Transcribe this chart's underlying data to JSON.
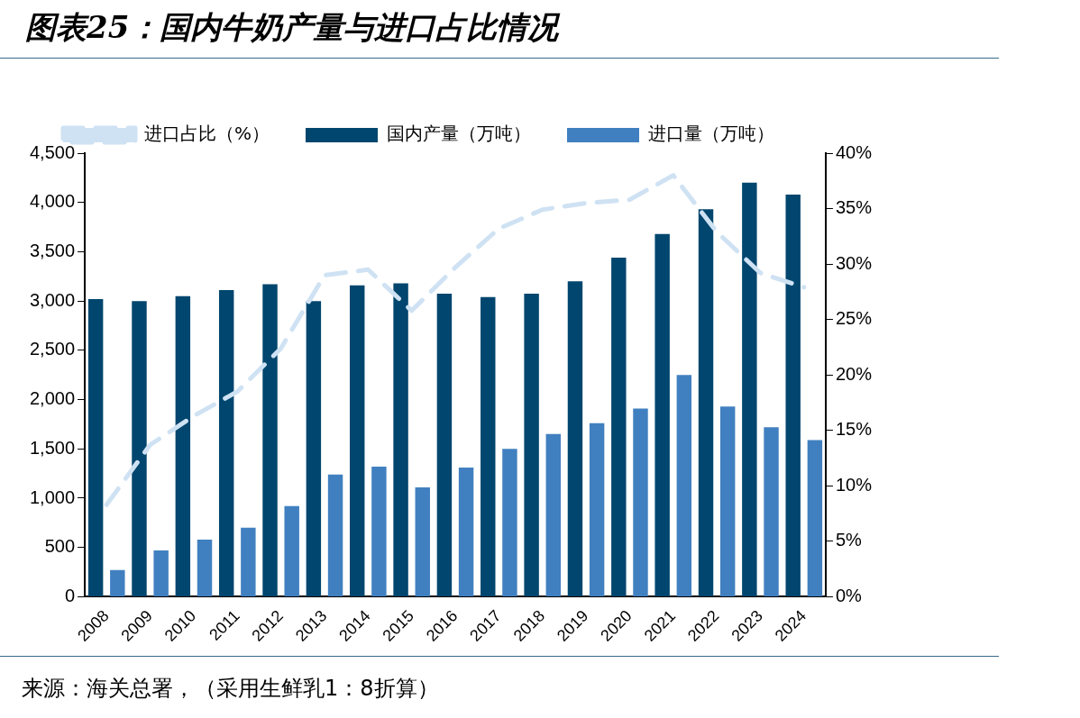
{
  "chart_data": {
    "type": "bar",
    "title": "图表25：国内牛奶产量与进口占比情况",
    "categories": [
      "2008",
      "2009",
      "2010",
      "2011",
      "2012",
      "2013",
      "2014",
      "2015",
      "2016",
      "2017",
      "2018",
      "2019",
      "2020",
      "2021",
      "2022",
      "2023",
      "2024"
    ],
    "series": [
      {
        "name": "国内产量（万吨）",
        "color": "#00466e",
        "values": [
          3020,
          3000,
          3050,
          3110,
          3170,
          3000,
          3160,
          3180,
          3075,
          3040,
          3075,
          3200,
          3440,
          3680,
          3930,
          4200,
          4080
        ]
      },
      {
        "name": "进口量（万吨）",
        "color": "#4180c0",
        "values": [
          270,
          470,
          580,
          700,
          920,
          1240,
          1320,
          1110,
          1310,
          1500,
          1650,
          1760,
          1910,
          2250,
          1930,
          1720,
          1590
        ]
      },
      {
        "name": "进口占比（%）",
        "type": "line",
        "axis": "y2",
        "line_style": "dashed",
        "color": "#cfe2f3",
        "values": [
          8.3,
          13.7,
          16.3,
          18.5,
          22.4,
          29.0,
          29.5,
          25.8,
          29.7,
          33.2,
          34.9,
          35.5,
          35.8,
          38.0,
          32.9,
          29.2,
          27.9
        ]
      }
    ],
    "ylim": [
      0,
      4500
    ],
    "yticks": [
      {
        "value": 0,
        "label": "0"
      },
      {
        "value": 500,
        "label": "500"
      },
      {
        "value": 1000,
        "label": "1,000"
      },
      {
        "value": 1500,
        "label": "1,500"
      },
      {
        "value": 2000,
        "label": "2,000"
      },
      {
        "value": 2500,
        "label": "2,500"
      },
      {
        "value": 3000,
        "label": "3,000"
      },
      {
        "value": 3500,
        "label": "3,500"
      },
      {
        "value": 4000,
        "label": "4,000"
      },
      {
        "value": 4500,
        "label": "4,500"
      }
    ],
    "y2lim": [
      0,
      40
    ],
    "y2ticks": [
      {
        "value": 0,
        "label": "0%"
      },
      {
        "value": 5,
        "label": "5%"
      },
      {
        "value": 10,
        "label": "10%"
      },
      {
        "value": 15,
        "label": "15%"
      },
      {
        "value": 20,
        "label": "20%"
      },
      {
        "value": 25,
        "label": "25%"
      },
      {
        "value": 30,
        "label": "30%"
      },
      {
        "value": 35,
        "label": "35%"
      },
      {
        "value": 40,
        "label": "40%"
      }
    ],
    "marker": "none",
    "grid": false,
    "legend": "top",
    "annotations": [
      "来源：海关总署，（采用生鲜乳1：8折算）"
    ]
  }
}
